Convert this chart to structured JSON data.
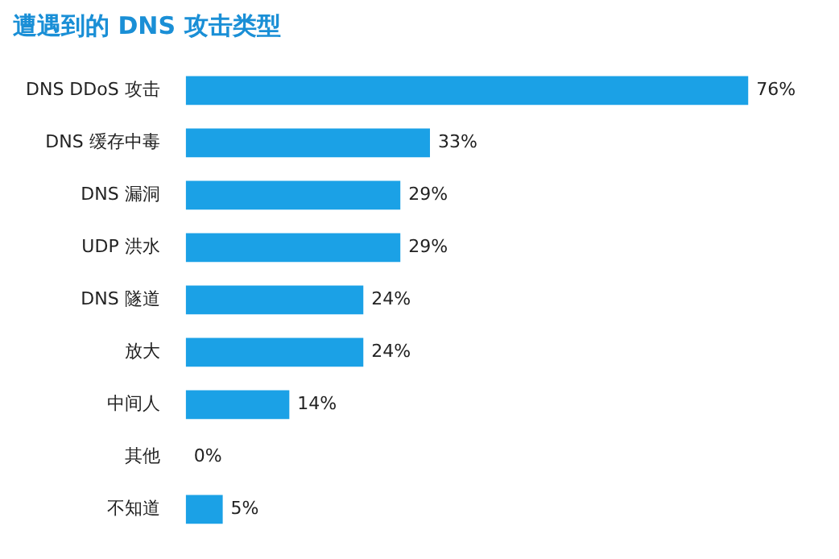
{
  "chart_data": {
    "type": "bar",
    "orientation": "horizontal",
    "title": "遭遇到的 DNS 攻击类型",
    "categories": [
      "DNS DDoS 攻击",
      "DNS 缓存中毒",
      "DNS 漏洞",
      "UDP 洪水",
      "DNS 隧道",
      "放大",
      "中间人",
      "其他",
      "不知道"
    ],
    "values": [
      76,
      33,
      29,
      29,
      24,
      24,
      14,
      0,
      5
    ],
    "value_labels": [
      "76%",
      "33%",
      "29%",
      "29%",
      "24%",
      "24%",
      "14%",
      "0%",
      "5%"
    ],
    "color": "#1ba1e6",
    "tick_labels": "y",
    "legend": false
  }
}
